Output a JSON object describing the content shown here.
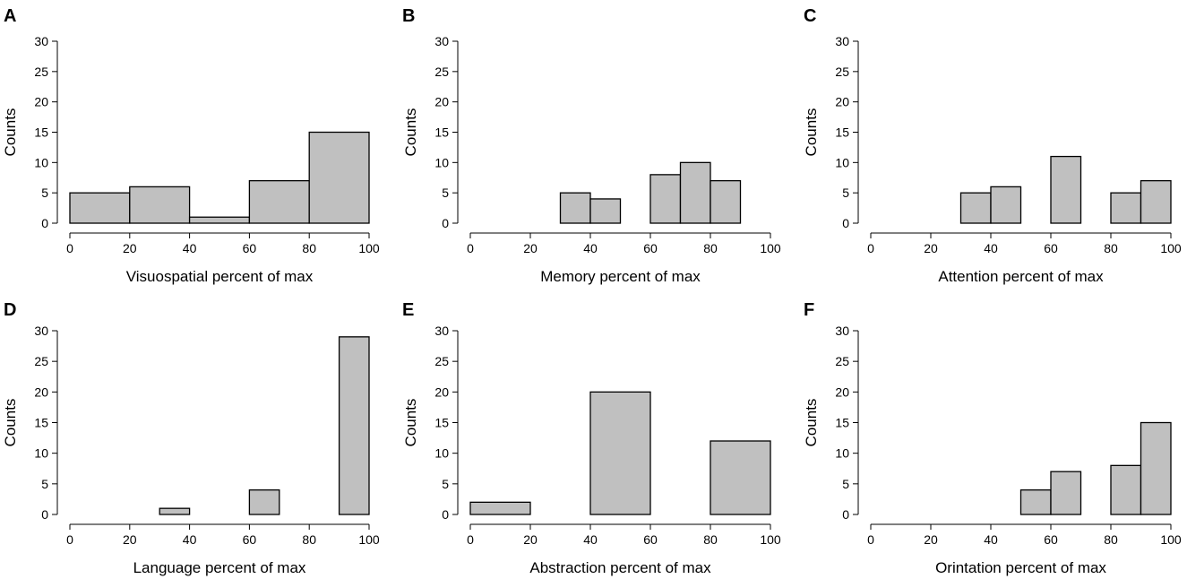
{
  "figure_title": "",
  "chart_data": [
    {
      "panel": "A",
      "type": "histogram",
      "xlabel": "Visuospatial percent of max",
      "ylabel": "Counts",
      "xlim": [
        0,
        100
      ],
      "ylim": [
        0,
        30
      ],
      "xticks": [
        0,
        20,
        40,
        60,
        80,
        100
      ],
      "yticks": [
        0,
        5,
        10,
        15,
        20,
        25,
        30
      ],
      "bins": [
        {
          "start": 0,
          "end": 20,
          "count": 5
        },
        {
          "start": 20,
          "end": 40,
          "count": 6
        },
        {
          "start": 40,
          "end": 60,
          "count": 1
        },
        {
          "start": 60,
          "end": 80,
          "count": 7
        },
        {
          "start": 80,
          "end": 100,
          "count": 15
        }
      ]
    },
    {
      "panel": "B",
      "type": "histogram",
      "xlabel": "Memory percent of max",
      "ylabel": "Counts",
      "xlim": [
        0,
        100
      ],
      "ylim": [
        0,
        30
      ],
      "xticks": [
        0,
        20,
        40,
        60,
        80,
        100
      ],
      "yticks": [
        0,
        5,
        10,
        15,
        20,
        25,
        30
      ],
      "bins": [
        {
          "start": 30,
          "end": 40,
          "count": 5
        },
        {
          "start": 40,
          "end": 50,
          "count": 4
        },
        {
          "start": 60,
          "end": 70,
          "count": 8
        },
        {
          "start": 70,
          "end": 80,
          "count": 10
        },
        {
          "start": 80,
          "end": 90,
          "count": 7
        }
      ]
    },
    {
      "panel": "C",
      "type": "histogram",
      "xlabel": "Attention percent of max",
      "ylabel": "Counts",
      "xlim": [
        0,
        100
      ],
      "ylim": [
        0,
        30
      ],
      "xticks": [
        0,
        20,
        40,
        60,
        80,
        100
      ],
      "yticks": [
        0,
        5,
        10,
        15,
        20,
        25,
        30
      ],
      "bins": [
        {
          "start": 30,
          "end": 40,
          "count": 5
        },
        {
          "start": 40,
          "end": 50,
          "count": 6
        },
        {
          "start": 60,
          "end": 70,
          "count": 11
        },
        {
          "start": 80,
          "end": 90,
          "count": 5
        },
        {
          "start": 90,
          "end": 100,
          "count": 7
        }
      ]
    },
    {
      "panel": "D",
      "type": "histogram",
      "xlabel": "Language percent of max",
      "ylabel": "Counts",
      "xlim": [
        0,
        100
      ],
      "ylim": [
        0,
        30
      ],
      "xticks": [
        0,
        20,
        40,
        60,
        80,
        100
      ],
      "yticks": [
        0,
        5,
        10,
        15,
        20,
        25,
        30
      ],
      "bins": [
        {
          "start": 30,
          "end": 40,
          "count": 1
        },
        {
          "start": 60,
          "end": 70,
          "count": 4
        },
        {
          "start": 90,
          "end": 100,
          "count": 29
        }
      ]
    },
    {
      "panel": "E",
      "type": "histogram",
      "xlabel": "Abstraction percent of max",
      "ylabel": "Counts",
      "xlim": [
        0,
        100
      ],
      "ylim": [
        0,
        30
      ],
      "xticks": [
        0,
        20,
        40,
        60,
        80,
        100
      ],
      "yticks": [
        0,
        5,
        10,
        15,
        20,
        25,
        30
      ],
      "bins": [
        {
          "start": 0,
          "end": 20,
          "count": 2
        },
        {
          "start": 40,
          "end": 60,
          "count": 20
        },
        {
          "start": 80,
          "end": 100,
          "count": 12
        }
      ]
    },
    {
      "panel": "F",
      "type": "histogram",
      "xlabel": "Orintation percent of max",
      "ylabel": "Counts",
      "xlim": [
        0,
        100
      ],
      "ylim": [
        0,
        30
      ],
      "xticks": [
        0,
        20,
        40,
        60,
        80,
        100
      ],
      "yticks": [
        0,
        5,
        10,
        15,
        20,
        25,
        30
      ],
      "bins": [
        {
          "start": 50,
          "end": 60,
          "count": 4
        },
        {
          "start": 60,
          "end": 70,
          "count": 7
        },
        {
          "start": 80,
          "end": 90,
          "count": 8
        },
        {
          "start": 90,
          "end": 100,
          "count": 15
        }
      ]
    }
  ],
  "colors": {
    "bar_fill": "#c0c0c0",
    "bar_stroke": "#000000",
    "axis": "#000000"
  }
}
